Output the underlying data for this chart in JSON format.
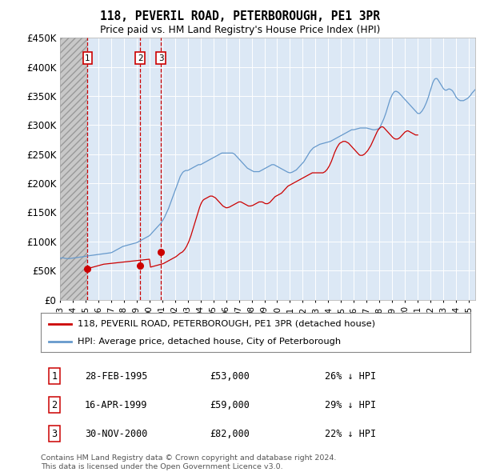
{
  "title": "118, PEVERIL ROAD, PETERBOROUGH, PE1 3PR",
  "subtitle": "Price paid vs. HM Land Registry's House Price Index (HPI)",
  "legend_line1": "118, PEVERIL ROAD, PETERBOROUGH, PE1 3PR (detached house)",
  "legend_line2": "HPI: Average price, detached house, City of Peterborough",
  "transactions": [
    {
      "label": "1",
      "date": "1995-02-28",
      "price": 53000,
      "pct": "26%",
      "date_str": "28-FEB-1995"
    },
    {
      "label": "2",
      "date": "1999-04-16",
      "price": 59000,
      "pct": "29%",
      "date_str": "16-APR-1999"
    },
    {
      "label": "3",
      "date": "2000-11-30",
      "price": 82000,
      "pct": "22%",
      "date_str": "30-NOV-2000"
    }
  ],
  "red_color": "#cc0000",
  "blue_color": "#6699cc",
  "bg_color": "#dce8f5",
  "footnote1": "Contains HM Land Registry data © Crown copyright and database right 2024.",
  "footnote2": "This data is licensed under the Open Government Licence v3.0.",
  "ylim": [
    0,
    450000
  ],
  "yticks": [
    0,
    50000,
    100000,
    150000,
    200000,
    250000,
    300000,
    350000,
    400000,
    450000
  ],
  "xlim_start": 1993.0,
  "xlim_end": 2025.5,
  "hpi_monthly": {
    "start_year": 1993,
    "start_month": 1,
    "values": [
      71000,
      71500,
      72000,
      72000,
      71500,
      71000,
      70800,
      70500,
      70500,
      70800,
      71000,
      71200,
      71500,
      71800,
      72000,
      72200,
      72500,
      72800,
      73000,
      73200,
      73500,
      73800,
      74000,
      74500,
      74800,
      75000,
      75200,
      75500,
      75800,
      76000,
      76200,
      76500,
      76800,
      77000,
      77200,
      77500,
      77800,
      78000,
      78200,
      78500,
      78800,
      79000,
      79200,
      79500,
      79800,
      80000,
      80200,
      80500,
      80800,
      81500,
      82500,
      83500,
      84500,
      85500,
      86500,
      87500,
      88500,
      89500,
      90500,
      91500,
      92000,
      92500,
      93000,
      93500,
      94000,
      94500,
      95000,
      95500,
      96000,
      96500,
      97000,
      97500,
      98000,
      99000,
      100000,
      101000,
      102000,
      103000,
      104000,
      105000,
      106000,
      107000,
      108000,
      109000,
      110000,
      112000,
      114000,
      116000,
      118000,
      120000,
      122000,
      124000,
      126000,
      128000,
      130000,
      132000,
      135000,
      138000,
      141000,
      145000,
      149000,
      153000,
      157000,
      162000,
      167000,
      172000,
      177000,
      182000,
      187000,
      192000,
      197000,
      202000,
      207000,
      212000,
      215000,
      218000,
      220000,
      221000,
      222000,
      222000,
      222000,
      223000,
      224000,
      225000,
      226000,
      227000,
      228000,
      229000,
      230000,
      231000,
      232000,
      232000,
      232000,
      233000,
      234000,
      235000,
      236000,
      237000,
      238000,
      239000,
      240000,
      241000,
      242000,
      243000,
      244000,
      245000,
      246000,
      247000,
      248000,
      249000,
      250000,
      251000,
      252000,
      252000,
      252000,
      252000,
      252000,
      252000,
      252000,
      252000,
      252000,
      252000,
      252000,
      251000,
      250000,
      248000,
      246000,
      244000,
      242000,
      240000,
      238000,
      236000,
      234000,
      232000,
      230000,
      228000,
      226000,
      225000,
      224000,
      223000,
      222000,
      221000,
      220000,
      220000,
      220000,
      220000,
      220000,
      220000,
      221000,
      222000,
      223000,
      224000,
      225000,
      226000,
      227000,
      228000,
      229000,
      230000,
      231000,
      232000,
      232000,
      232000,
      231000,
      230000,
      229000,
      228000,
      227000,
      226000,
      225000,
      224000,
      223000,
      222000,
      221000,
      220000,
      219000,
      218500,
      218000,
      218500,
      219000,
      220000,
      221000,
      222000,
      223000,
      225000,
      227000,
      229000,
      231000,
      233000,
      235000,
      237000,
      240000,
      243000,
      246000,
      249000,
      252000,
      255000,
      257000,
      259000,
      261000,
      262000,
      263000,
      264000,
      265000,
      266000,
      267000,
      267500,
      268000,
      268500,
      269000,
      269500,
      270000,
      270500,
      271000,
      271500,
      272000,
      273000,
      274000,
      275000,
      276000,
      277000,
      278000,
      279000,
      280000,
      281000,
      282000,
      283000,
      284000,
      285000,
      286000,
      287000,
      288000,
      289000,
      290000,
      291000,
      292000,
      292000,
      292000,
      292500,
      293000,
      293500,
      294000,
      294500,
      295000,
      295000,
      295000,
      295000,
      295000,
      295000,
      295000,
      294500,
      294000,
      293500,
      293000,
      292500,
      292000,
      292000,
      292000,
      292500,
      293000,
      293500,
      295000,
      298000,
      302000,
      306000,
      310000,
      315000,
      320000,
      326000,
      332000,
      338000,
      344000,
      348000,
      352000,
      355000,
      357000,
      358000,
      358000,
      357000,
      356000,
      354000,
      352000,
      350000,
      348000,
      346000,
      344000,
      342000,
      340000,
      338000,
      336000,
      334000,
      332000,
      330000,
      328000,
      326000,
      324000,
      322000,
      320000,
      320000,
      320000,
      322000,
      324000,
      327000,
      330000,
      334000,
      338000,
      343000,
      348000,
      354000,
      360000,
      366000,
      372000,
      376000,
      379000,
      380000,
      380000,
      378000,
      375000,
      372000,
      369000,
      366000,
      363000,
      361000,
      360000,
      360000,
      361000,
      362000,
      362000,
      361000,
      360000,
      358000,
      355000,
      352000,
      348000,
      346000,
      344000,
      343000,
      342000,
      342000,
      342000,
      342000,
      343000,
      344000,
      345000,
      346000,
      348000,
      350000,
      352000,
      355000,
      357000,
      359000,
      361000,
      363000,
      365000,
      367000,
      369000,
      370000
    ]
  },
  "red_monthly": {
    "start_year": 1995,
    "start_month": 2,
    "values": [
      53000,
      53500,
      54000,
      54500,
      55000,
      55500,
      56000,
      56500,
      57000,
      57500,
      58000,
      58500,
      59000,
      59500,
      60000,
      60500,
      61000,
      61200,
      61400,
      61600,
      61800,
      62000,
      62200,
      62400,
      62600,
      62800,
      63000,
      63200,
      63400,
      63600,
      63800,
      64000,
      64200,
      64400,
      64600,
      64800,
      65000,
      65200,
      65400,
      65600,
      65800,
      66000,
      66200,
      66400,
      66600,
      66800,
      67000,
      67200,
      67400,
      67600,
      67800,
      68000,
      68200,
      68400,
      68600,
      68800,
      69000,
      69200,
      69400,
      69600,
      56000,
      56500,
      57000,
      57500,
      58000,
      58500,
      59000,
      59500,
      60000,
      60500,
      61000,
      61500,
      62000,
      63000,
      64000,
      65000,
      66000,
      67000,
      68000,
      69000,
      70000,
      71000,
      72000,
      73000,
      74000,
      75500,
      77000,
      78500,
      80000,
      81000,
      82000,
      84000,
      86000,
      89000,
      92000,
      96000,
      100000,
      105000,
      110000,
      116000,
      122000,
      128000,
      134000,
      140000,
      146000,
      152000,
      158000,
      163000,
      167000,
      170000,
      172000,
      173000,
      174000,
      175000,
      176000,
      177000,
      178000,
      178000,
      178000,
      177000,
      176000,
      175000,
      173000,
      171000,
      169000,
      167000,
      165000,
      163000,
      161000,
      160000,
      159000,
      158000,
      158000,
      158500,
      159000,
      160000,
      161000,
      162000,
      163000,
      164000,
      165000,
      166000,
      167000,
      168000,
      168000,
      168000,
      167000,
      166000,
      165000,
      164000,
      163000,
      162000,
      161000,
      161000,
      161000,
      161500,
      162000,
      163000,
      164000,
      165000,
      166000,
      167000,
      168000,
      168000,
      168000,
      168000,
      167000,
      166000,
      165000,
      165000,
      165000,
      166000,
      167000,
      169000,
      171000,
      173000,
      175000,
      177000,
      178000,
      179000,
      180000,
      181000,
      182000,
      183000,
      185000,
      187000,
      189000,
      191000,
      193000,
      195000,
      196000,
      197000,
      198000,
      199000,
      200000,
      201000,
      202000,
      203000,
      204000,
      205000,
      206000,
      207000,
      208000,
      209000,
      210000,
      211000,
      212000,
      213000,
      214000,
      215000,
      216000,
      217000,
      218000,
      218000,
      218000,
      218000,
      218000,
      218000,
      218000,
      218000,
      218000,
      218000,
      218000,
      219000,
      220000,
      222000,
      224000,
      227000,
      230000,
      234000,
      238000,
      243000,
      248000,
      253000,
      257000,
      261000,
      264000,
      267000,
      269000,
      270000,
      271000,
      272000,
      272000,
      272000,
      271000,
      270000,
      269000,
      267000,
      265000,
      263000,
      261000,
      259000,
      257000,
      255000,
      253000,
      251000,
      249000,
      248000,
      248000,
      248000,
      249000,
      250000,
      252000,
      254000,
      256000,
      259000,
      262000,
      265000,
      269000,
      273000,
      277000,
      281000,
      285000,
      289000,
      292000,
      294000,
      296000,
      297000,
      297000,
      296000,
      294000,
      292000,
      290000,
      288000,
      286000,
      284000,
      282000,
      280000,
      278000,
      277000,
      276000,
      276000,
      276000,
      277000,
      278000,
      280000,
      282000,
      284000,
      286000,
      288000,
      289000,
      290000,
      290000,
      289000,
      288000,
      287000,
      286000,
      285000,
      284000,
      283000,
      283000,
      283000
    ]
  }
}
